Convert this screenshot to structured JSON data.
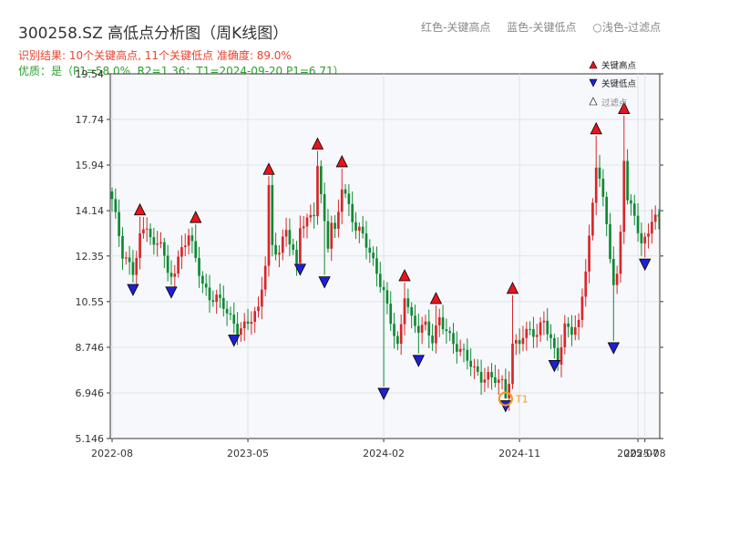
{
  "title": "300258.SZ 高低点分析图（周K线图）",
  "header_legend": {
    "red": "红色-关键高点",
    "blue": "蓝色-关键低点",
    "light": "○浅色-过滤点"
  },
  "result_text": "识别结果: 10个关键高点, 11个关键低点  准确度: 89.0%",
  "quality_text": "优质：是（P1=58.0%, R2=1.36；T1=2024-09-20 P1=6.71）",
  "colors": {
    "up": "#d62728",
    "down": "#0e8a34",
    "high_marker": "#e8141c",
    "low_marker": "#1f1fd6",
    "t1_ring": "#f29b18"
  },
  "chart_data": {
    "type": "candlestick",
    "x_tick_labels": [
      "2022-08",
      "2023-05",
      "2024-02",
      "2024-11",
      "2025-07",
      "2025-08"
    ],
    "x_tick_weeks": [
      0,
      39,
      78,
      117,
      151,
      153
    ],
    "y_ticks": [
      5.146,
      6.946,
      8.746,
      10.55,
      12.35,
      14.14,
      15.94,
      17.74,
      19.54
    ],
    "ylim": [
      5.146,
      19.54
    ],
    "week_count": 158,
    "grid": true,
    "legend_position": "top-right",
    "legend": {
      "high": "关键高点",
      "low": "关键低点",
      "filtered": "过滤点"
    },
    "anchors": [
      [
        0,
        14.6
      ],
      [
        3,
        12.3
      ],
      [
        6,
        11.8
      ],
      [
        8,
        13.2
      ],
      [
        10,
        13.6
      ],
      [
        12,
        12.5
      ],
      [
        14,
        13.0
      ],
      [
        16,
        11.6
      ],
      [
        18,
        11.9
      ],
      [
        20,
        12.6
      ],
      [
        22,
        13.1
      ],
      [
        24,
        12.2
      ],
      [
        26,
        11.3
      ],
      [
        28,
        10.8
      ],
      [
        30,
        10.7
      ],
      [
        32,
        10.3
      ],
      [
        34,
        9.8
      ],
      [
        36,
        9.5
      ],
      [
        38,
        9.7
      ],
      [
        40,
        9.9
      ],
      [
        42,
        10.1
      ],
      [
        44,
        12.0
      ],
      [
        45,
        15.0
      ],
      [
        46,
        12.8
      ],
      [
        48,
        12.6
      ],
      [
        50,
        13.4
      ],
      [
        52,
        12.4
      ],
      [
        53,
        11.8
      ],
      [
        54,
        13.5
      ],
      [
        56,
        13.8
      ],
      [
        58,
        14.2
      ],
      [
        59,
        16.0
      ],
      [
        60,
        14.6
      ],
      [
        62,
        12.7
      ],
      [
        63,
        13.5
      ],
      [
        64,
        13.2
      ],
      [
        66,
        15.2
      ],
      [
        68,
        14.4
      ],
      [
        70,
        13.4
      ],
      [
        72,
        13.1
      ],
      [
        74,
        12.4
      ],
      [
        76,
        11.8
      ],
      [
        78,
        11.0
      ],
      [
        80,
        9.8
      ],
      [
        82,
        8.6
      ],
      [
        83,
        9.5
      ],
      [
        84,
        10.8
      ],
      [
        86,
        9.9
      ],
      [
        88,
        9.6
      ],
      [
        90,
        9.6
      ],
      [
        92,
        8.9
      ],
      [
        94,
        9.8
      ],
      [
        96,
        9.5
      ],
      [
        98,
        9.0
      ],
      [
        100,
        8.6
      ],
      [
        102,
        8.2
      ],
      [
        104,
        7.8
      ],
      [
        106,
        7.6
      ],
      [
        108,
        7.7
      ],
      [
        110,
        7.5
      ],
      [
        112,
        7.2
      ],
      [
        113,
        6.71
      ],
      [
        114,
        7.4
      ],
      [
        115,
        8.8
      ],
      [
        116,
        9.0
      ],
      [
        118,
        9.3
      ],
      [
        120,
        9.4
      ],
      [
        122,
        9.1
      ],
      [
        124,
        9.8
      ],
      [
        126,
        9.1
      ],
      [
        128,
        8.3
      ],
      [
        129,
        8.9
      ],
      [
        130,
        9.5
      ],
      [
        132,
        9.3
      ],
      [
        134,
        9.6
      ],
      [
        136,
        12.0
      ],
      [
        138,
        14.4
      ],
      [
        139,
        16.0
      ],
      [
        140,
        15.5
      ],
      [
        142,
        13.4
      ],
      [
        144,
        11.2
      ],
      [
        145,
        11.5
      ],
      [
        146,
        13.4
      ],
      [
        147,
        16.4
      ],
      [
        148,
        14.6
      ],
      [
        150,
        14.0
      ],
      [
        152,
        12.6
      ],
      [
        153,
        12.9
      ],
      [
        155,
        13.8
      ],
      [
        157,
        14.0
      ]
    ],
    "key_highs": [
      {
        "week": 8,
        "value": 13.9
      },
      {
        "week": 24,
        "value": 13.6
      },
      {
        "week": 45,
        "value": 15.5
      },
      {
        "week": 59,
        "value": 16.5
      },
      {
        "week": 66,
        "value": 15.8
      },
      {
        "week": 84,
        "value": 11.3
      },
      {
        "week": 93,
        "value": 10.4
      },
      {
        "week": 115,
        "value": 10.8
      },
      {
        "week": 139,
        "value": 17.1
      },
      {
        "week": 147,
        "value": 17.9
      }
    ],
    "key_lows": [
      {
        "week": 6,
        "value": 11.3
      },
      {
        "week": 17,
        "value": 11.2
      },
      {
        "week": 35,
        "value": 9.3
      },
      {
        "week": 54,
        "value": 12.1
      },
      {
        "week": 61,
        "value": 11.6
      },
      {
        "week": 78,
        "value": 7.2
      },
      {
        "week": 88,
        "value": 8.5
      },
      {
        "week": 113,
        "value": 6.71
      },
      {
        "week": 127,
        "value": 8.3
      },
      {
        "week": 144,
        "value": 9.0
      },
      {
        "week": 153,
        "value": 12.3
      }
    ],
    "t1": {
      "week": 113,
      "value": 6.71,
      "label": "T1"
    }
  }
}
